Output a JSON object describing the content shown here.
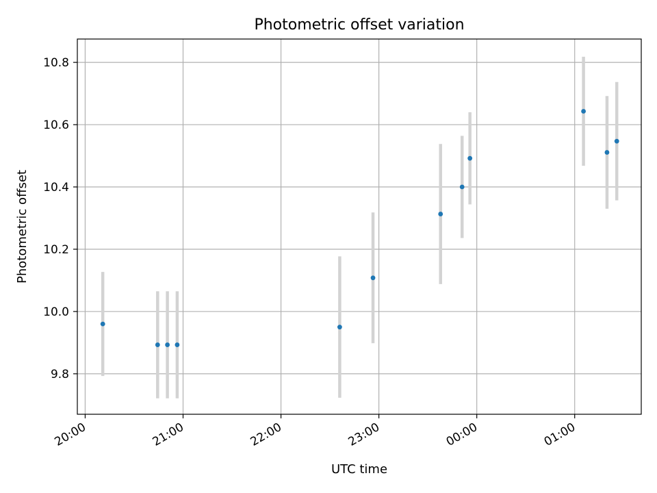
{
  "chart_data": {
    "type": "scatter",
    "title": "Photometric offset variation",
    "xlabel": "UTC time",
    "ylabel": "Photometric offset",
    "grid": true,
    "x_unit": "hours since 20:00 UTC",
    "xlim": [
      -0.08,
      5.68
    ],
    "ylim": [
      9.67,
      10.875
    ],
    "x_ticks": [
      {
        "value": 0,
        "label": "20:00"
      },
      {
        "value": 1,
        "label": "21:00"
      },
      {
        "value": 2,
        "label": "22:00"
      },
      {
        "value": 3,
        "label": "23:00"
      },
      {
        "value": 4,
        "label": "00:00"
      },
      {
        "value": 5,
        "label": "01:00"
      }
    ],
    "y_ticks": [
      {
        "value": 9.8,
        "label": "9.8"
      },
      {
        "value": 10.0,
        "label": "10.0"
      },
      {
        "value": 10.2,
        "label": "10.2"
      },
      {
        "value": 10.4,
        "label": "10.4"
      },
      {
        "value": 10.6,
        "label": "10.6"
      },
      {
        "value": 10.8,
        "label": "10.8"
      }
    ],
    "series": [
      {
        "name": "Photometric offset",
        "marker_color": "#1f77b4",
        "errorbar_color": "#d3d3d3",
        "points": [
          {
            "x": 0.18,
            "y": 9.96,
            "err": 0.167
          },
          {
            "x": 0.74,
            "y": 9.893,
            "err": 0.172
          },
          {
            "x": 0.84,
            "y": 9.893,
            "err": 0.172
          },
          {
            "x": 0.94,
            "y": 9.893,
            "err": 0.172
          },
          {
            "x": 2.6,
            "y": 9.95,
            "err": 0.227
          },
          {
            "x": 2.94,
            "y": 10.108,
            "err": 0.21
          },
          {
            "x": 3.63,
            "y": 10.313,
            "err": 0.225
          },
          {
            "x": 3.85,
            "y": 10.4,
            "err": 0.164
          },
          {
            "x": 3.93,
            "y": 10.492,
            "err": 0.148
          },
          {
            "x": 5.09,
            "y": 10.643,
            "err": 0.175
          },
          {
            "x": 5.33,
            "y": 10.511,
            "err": 0.181
          },
          {
            "x": 5.43,
            "y": 10.547,
            "err": 0.19
          }
        ]
      }
    ]
  }
}
